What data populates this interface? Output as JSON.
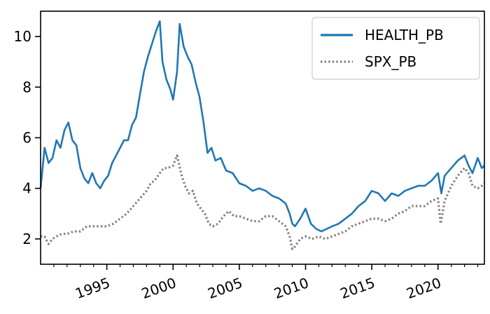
{
  "chart_data": {
    "type": "line",
    "title": "",
    "xlabel": "",
    "ylabel": "",
    "xlim": [
      1990.0,
      2023.5
    ],
    "ylim": [
      1.0,
      11.0
    ],
    "grid": false,
    "legend_position": "top-right",
    "x_ticks": [
      {
        "value": 1995,
        "label": "1995"
      },
      {
        "value": 2000,
        "label": "2000"
      },
      {
        "value": 2005,
        "label": "2005"
      },
      {
        "value": 2010,
        "label": "2010"
      },
      {
        "value": 2015,
        "label": "2015"
      },
      {
        "value": 2020,
        "label": "2020"
      }
    ],
    "x_minor_ticks": [
      1991,
      1992,
      1993,
      1994,
      1996,
      1997,
      1998,
      1999,
      2001,
      2002,
      2003,
      2004,
      2006,
      2007,
      2008,
      2009,
      2011,
      2012,
      2013,
      2014,
      2016,
      2017,
      2018,
      2019,
      2021,
      2022,
      2023
    ],
    "y_ticks": [
      {
        "value": 2,
        "label": "2"
      },
      {
        "value": 4,
        "label": "4"
      },
      {
        "value": 6,
        "label": "6"
      },
      {
        "value": 8,
        "label": "8"
      },
      {
        "value": 10,
        "label": "10"
      }
    ],
    "series": [
      {
        "name": "HEALTH_PB",
        "color": "#1f77b4",
        "style": "solid",
        "points": [
          [
            1990.0,
            4.0
          ],
          [
            1990.3,
            5.6
          ],
          [
            1990.6,
            5.0
          ],
          [
            1990.9,
            5.2
          ],
          [
            1991.2,
            5.9
          ],
          [
            1991.5,
            5.6
          ],
          [
            1991.8,
            6.3
          ],
          [
            1992.1,
            6.6
          ],
          [
            1992.4,
            5.9
          ],
          [
            1992.7,
            5.7
          ],
          [
            1993.0,
            4.8
          ],
          [
            1993.3,
            4.4
          ],
          [
            1993.6,
            4.2
          ],
          [
            1993.9,
            4.6
          ],
          [
            1994.2,
            4.2
          ],
          [
            1994.5,
            4.0
          ],
          [
            1994.8,
            4.3
          ],
          [
            1995.1,
            4.5
          ],
          [
            1995.4,
            5.0
          ],
          [
            1995.7,
            5.3
          ],
          [
            1996.0,
            5.6
          ],
          [
            1996.3,
            5.9
          ],
          [
            1996.6,
            5.9
          ],
          [
            1996.9,
            6.5
          ],
          [
            1997.2,
            6.8
          ],
          [
            1997.5,
            7.7
          ],
          [
            1997.8,
            8.6
          ],
          [
            1998.1,
            9.2
          ],
          [
            1998.4,
            9.7
          ],
          [
            1998.7,
            10.2
          ],
          [
            1999.0,
            10.6
          ],
          [
            1999.2,
            9.0
          ],
          [
            1999.5,
            8.3
          ],
          [
            1999.8,
            7.9
          ],
          [
            2000.0,
            7.5
          ],
          [
            2000.3,
            8.6
          ],
          [
            2000.5,
            10.5
          ],
          [
            2000.8,
            9.6
          ],
          [
            2001.1,
            9.2
          ],
          [
            2001.4,
            8.9
          ],
          [
            2001.7,
            8.2
          ],
          [
            2002.0,
            7.6
          ],
          [
            2002.3,
            6.6
          ],
          [
            2002.6,
            5.4
          ],
          [
            2002.9,
            5.6
          ],
          [
            2003.2,
            5.1
          ],
          [
            2003.6,
            5.2
          ],
          [
            2004.0,
            4.7
          ],
          [
            2004.5,
            4.6
          ],
          [
            2005.0,
            4.2
          ],
          [
            2005.5,
            4.1
          ],
          [
            2006.0,
            3.9
          ],
          [
            2006.5,
            4.0
          ],
          [
            2007.0,
            3.9
          ],
          [
            2007.5,
            3.7
          ],
          [
            2008.0,
            3.6
          ],
          [
            2008.5,
            3.4
          ],
          [
            2008.8,
            3.0
          ],
          [
            2009.0,
            2.6
          ],
          [
            2009.2,
            2.5
          ],
          [
            2009.6,
            2.8
          ],
          [
            2010.0,
            3.2
          ],
          [
            2010.4,
            2.6
          ],
          [
            2010.8,
            2.4
          ],
          [
            2011.2,
            2.3
          ],
          [
            2011.6,
            2.4
          ],
          [
            2012.0,
            2.5
          ],
          [
            2012.5,
            2.6
          ],
          [
            2013.0,
            2.8
          ],
          [
            2013.5,
            3.0
          ],
          [
            2014.0,
            3.3
          ],
          [
            2014.5,
            3.5
          ],
          [
            2015.0,
            3.9
          ],
          [
            2015.5,
            3.8
          ],
          [
            2016.0,
            3.5
          ],
          [
            2016.5,
            3.8
          ],
          [
            2017.0,
            3.7
          ],
          [
            2017.5,
            3.9
          ],
          [
            2018.0,
            4.0
          ],
          [
            2018.5,
            4.1
          ],
          [
            2019.0,
            4.1
          ],
          [
            2019.5,
            4.3
          ],
          [
            2020.0,
            4.6
          ],
          [
            2020.25,
            3.8
          ],
          [
            2020.5,
            4.5
          ],
          [
            2021.0,
            4.8
          ],
          [
            2021.5,
            5.1
          ],
          [
            2022.0,
            5.3
          ],
          [
            2022.3,
            4.9
          ],
          [
            2022.6,
            4.6
          ],
          [
            2023.0,
            5.2
          ],
          [
            2023.3,
            4.8
          ],
          [
            2023.5,
            4.9
          ]
        ]
      },
      {
        "name": "SPX_PB",
        "color": "#808080",
        "style": "dotted",
        "points": [
          [
            1990.0,
            2.1
          ],
          [
            1990.3,
            2.1
          ],
          [
            1990.6,
            1.8
          ],
          [
            1990.9,
            2.0
          ],
          [
            1991.2,
            2.1
          ],
          [
            1991.6,
            2.2
          ],
          [
            1992.0,
            2.2
          ],
          [
            1992.5,
            2.3
          ],
          [
            1993.0,
            2.3
          ],
          [
            1993.5,
            2.5
          ],
          [
            1994.0,
            2.5
          ],
          [
            1994.5,
            2.5
          ],
          [
            1995.0,
            2.5
          ],
          [
            1995.5,
            2.6
          ],
          [
            1996.0,
            2.8
          ],
          [
            1996.5,
            3.0
          ],
          [
            1997.0,
            3.3
          ],
          [
            1997.5,
            3.6
          ],
          [
            1998.0,
            3.9
          ],
          [
            1998.3,
            4.2
          ],
          [
            1998.6,
            4.3
          ],
          [
            1999.0,
            4.6
          ],
          [
            1999.3,
            4.8
          ],
          [
            1999.6,
            4.8
          ],
          [
            2000.0,
            4.9
          ],
          [
            2000.3,
            5.3
          ],
          [
            2000.6,
            4.6
          ],
          [
            2000.9,
            4.1
          ],
          [
            2001.2,
            3.8
          ],
          [
            2001.5,
            3.9
          ],
          [
            2001.8,
            3.4
          ],
          [
            2002.1,
            3.2
          ],
          [
            2002.4,
            3.0
          ],
          [
            2002.7,
            2.6
          ],
          [
            2003.0,
            2.5
          ],
          [
            2003.4,
            2.6
          ],
          [
            2003.8,
            2.9
          ],
          [
            2004.2,
            3.1
          ],
          [
            2004.6,
            2.9
          ],
          [
            2005.0,
            2.9
          ],
          [
            2005.5,
            2.8
          ],
          [
            2006.0,
            2.7
          ],
          [
            2006.5,
            2.7
          ],
          [
            2007.0,
            2.9
          ],
          [
            2007.5,
            2.9
          ],
          [
            2008.0,
            2.7
          ],
          [
            2008.5,
            2.5
          ],
          [
            2008.8,
            2.1
          ],
          [
            2009.0,
            1.6
          ],
          [
            2009.2,
            1.7
          ],
          [
            2009.6,
            2.0
          ],
          [
            2010.0,
            2.1
          ],
          [
            2010.5,
            2.0
          ],
          [
            2011.0,
            2.1
          ],
          [
            2011.5,
            2.0
          ],
          [
            2012.0,
            2.1
          ],
          [
            2012.5,
            2.2
          ],
          [
            2013.0,
            2.3
          ],
          [
            2013.5,
            2.5
          ],
          [
            2014.0,
            2.6
          ],
          [
            2014.5,
            2.7
          ],
          [
            2015.0,
            2.8
          ],
          [
            2015.5,
            2.8
          ],
          [
            2016.0,
            2.7
          ],
          [
            2016.5,
            2.8
          ],
          [
            2017.0,
            3.0
          ],
          [
            2017.5,
            3.1
          ],
          [
            2018.0,
            3.3
          ],
          [
            2018.5,
            3.3
          ],
          [
            2019.0,
            3.3
          ],
          [
            2019.5,
            3.5
          ],
          [
            2020.0,
            3.6
          ],
          [
            2020.2,
            2.6
          ],
          [
            2020.5,
            3.5
          ],
          [
            2021.0,
            4.1
          ],
          [
            2021.5,
            4.5
          ],
          [
            2022.0,
            4.8
          ],
          [
            2022.3,
            4.6
          ],
          [
            2022.6,
            4.1
          ],
          [
            2023.0,
            4.0
          ],
          [
            2023.3,
            4.1
          ],
          [
            2023.5,
            4.2
          ]
        ]
      }
    ]
  }
}
